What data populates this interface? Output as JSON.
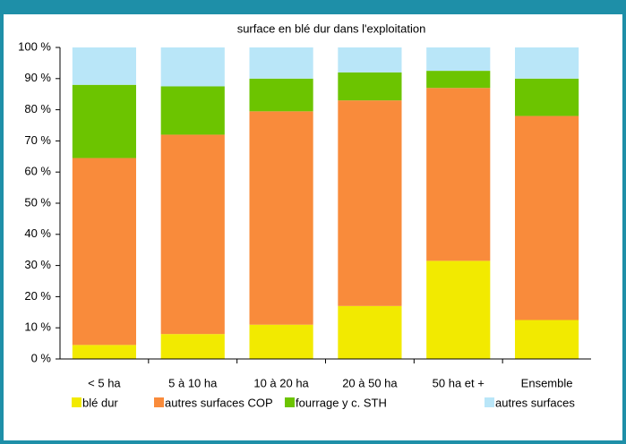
{
  "chart_data": {
    "type": "stacked_bar",
    "title": "surface en blé dur dans l'exploitation",
    "categories": [
      "< 5 ha",
      "5 à 10 ha",
      "10 à 20 ha",
      "20 à 50 ha",
      "50 ha et +",
      "Ensemble"
    ],
    "series": [
      {
        "name": "blé dur",
        "color": "#f2ea00",
        "values": [
          4.5,
          8,
          11,
          17,
          31.5,
          12.5
        ]
      },
      {
        "name": "autres surfaces COP",
        "color": "#f98b3b",
        "values": [
          60,
          64,
          68.5,
          66,
          55.5,
          65.5
        ]
      },
      {
        "name": "fourrage y c. STH",
        "color": "#6cc400",
        "values": [
          23.5,
          15.5,
          10.5,
          9,
          5.5,
          12
        ]
      },
      {
        "name": "autres surfaces",
        "color": "#b9e6f8",
        "values": [
          12,
          12.5,
          10,
          8,
          7.5,
          10
        ]
      }
    ],
    "ylim": [
      0,
      100
    ],
    "yticks": [
      {
        "value": 0,
        "label": "0 %"
      },
      {
        "value": 10,
        "label": "10 %"
      },
      {
        "value": 20,
        "label": "20 %"
      },
      {
        "value": 30,
        "label": "30 %"
      },
      {
        "value": 40,
        "label": "40 %"
      },
      {
        "value": 50,
        "label": "50 %"
      },
      {
        "value": 60,
        "label": "60 %"
      },
      {
        "value": 70,
        "label": "70 %"
      },
      {
        "value": 80,
        "label": "80 %"
      },
      {
        "value": 90,
        "label": "90 %"
      },
      {
        "value": 100,
        "label": "100 %"
      }
    ],
    "grid": false,
    "legend": "bottom"
  }
}
